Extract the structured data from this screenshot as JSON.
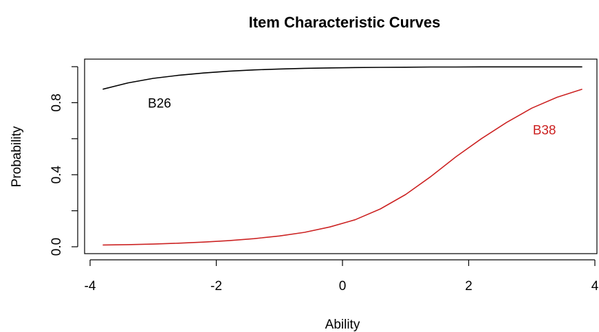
{
  "chart_data": {
    "type": "line",
    "title": "Item Characteristic Curves",
    "xlabel": "Ability",
    "ylabel": "Probability",
    "xlim": [
      -4,
      4
    ],
    "ylim": [
      0,
      1
    ],
    "x_ticks": [
      -4,
      -2,
      0,
      2,
      4
    ],
    "x_tick_labels": [
      "-4",
      "-2",
      "0",
      "2",
      "4"
    ],
    "y_ticks": [
      0,
      0.4,
      0.8
    ],
    "y_tick_labels": [
      "0.0",
      "0.4",
      "0.8"
    ],
    "grid": false,
    "series": [
      {
        "name": "B26",
        "color": "#000000",
        "x": [
          -3.8,
          -3.4,
          -3.0,
          -2.6,
          -2.2,
          -1.8,
          -1.4,
          -1.0,
          -0.6,
          -0.2,
          0.2,
          0.6,
          1.0,
          1.4,
          1.8,
          2.2,
          2.6,
          3.0,
          3.4,
          3.8
        ],
        "y": [
          0.875,
          0.91,
          0.935,
          0.952,
          0.965,
          0.975,
          0.982,
          0.987,
          0.991,
          0.993,
          0.995,
          0.996,
          0.997,
          0.998,
          0.998,
          0.999,
          0.999,
          0.999,
          0.999,
          0.999
        ]
      },
      {
        "name": "B38",
        "color": "#cc2222",
        "x": [
          -3.8,
          -3.4,
          -3.0,
          -2.6,
          -2.2,
          -1.8,
          -1.4,
          -1.0,
          -0.6,
          -0.2,
          0.2,
          0.6,
          1.0,
          1.4,
          1.8,
          2.2,
          2.6,
          3.0,
          3.4,
          3.8
        ],
        "y": [
          0.01,
          0.012,
          0.015,
          0.02,
          0.026,
          0.034,
          0.045,
          0.06,
          0.08,
          0.11,
          0.15,
          0.21,
          0.29,
          0.39,
          0.5,
          0.6,
          0.69,
          0.77,
          0.83,
          0.875
        ]
      }
    ],
    "annotations": [
      {
        "text": "B26",
        "x": -2.9,
        "y": 0.8,
        "color": "#000000"
      },
      {
        "text": "B38",
        "x": 3.2,
        "y": 0.65,
        "color": "#cc2222"
      }
    ]
  }
}
